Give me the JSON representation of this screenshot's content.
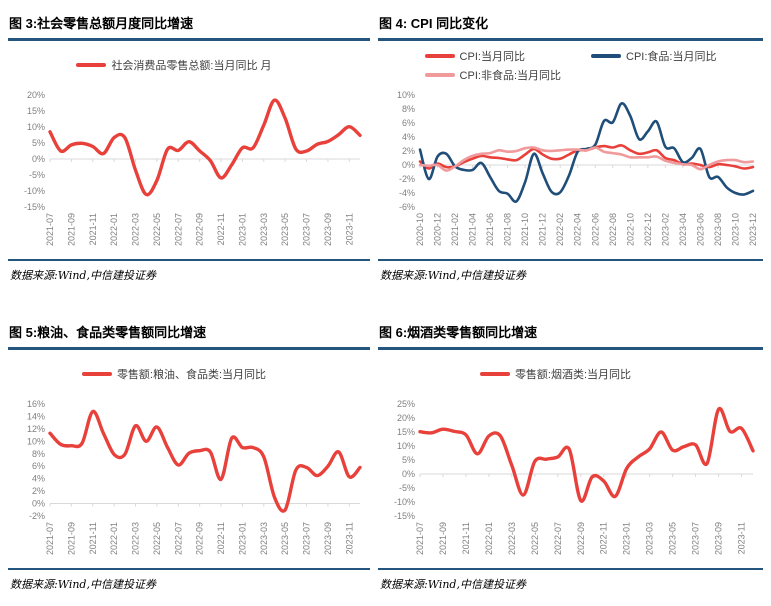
{
  "colors": {
    "red": "#E8403A",
    "dark_blue": "#1F4E79",
    "pink": "#F09A9C",
    "rule_blue": "#24557E",
    "zero_line": "#D9D9D9",
    "axis_label": "#808080",
    "legend_text": "#404040"
  },
  "source_note": "数据来源:Wind,中信建投证券",
  "chart_data": [
    {
      "type": "line",
      "title": "图 3:社会零售总额月度同比增速",
      "ylabel": "",
      "xlabel": "",
      "unit": "%",
      "ylim": [
        -15,
        20
      ],
      "ytick_step": 5,
      "x_tick_every": 2,
      "grid": "zero-line-only",
      "legend_position": "top-center",
      "stroke_width": 3.4,
      "x": [
        "2021-07",
        "2021-08",
        "2021-09",
        "2021-10",
        "2021-11",
        "2021-12",
        "2022-01",
        "2022-02",
        "2022-03",
        "2022-04",
        "2022-05",
        "2022-06",
        "2022-07",
        "2022-08",
        "2022-09",
        "2022-10",
        "2022-11",
        "2022-12",
        "2023-01",
        "2023-02",
        "2023-03",
        "2023-04",
        "2023-05",
        "2023-06",
        "2023-07",
        "2023-08",
        "2023-09",
        "2023-10",
        "2023-11",
        "2023-12"
      ],
      "series": [
        {
          "name": "社会消费品零售总额:当月同比 月",
          "color": "#E8403A",
          "values": [
            8.5,
            2.5,
            4.4,
            4.9,
            3.9,
            1.7,
            6.7,
            6.7,
            -3.5,
            -11.1,
            -6.7,
            3.1,
            2.7,
            5.4,
            2.5,
            -0.5,
            -5.9,
            -1.8,
            3.5,
            3.5,
            10.6,
            18.4,
            12.7,
            3.1,
            2.5,
            4.6,
            5.5,
            7.6,
            10.1,
            7.4
          ]
        }
      ]
    },
    {
      "type": "line",
      "title": "图 4: CPI 同比变化",
      "ylabel": "",
      "xlabel": "",
      "unit": "%",
      "ylim": [
        -6,
        10
      ],
      "ytick_step": 2,
      "x_tick_every": 2,
      "grid": "zero-line-only",
      "legend_position": "top-center",
      "stroke_width": 2.6,
      "x": [
        "2020-10",
        "2020-11",
        "2020-12",
        "2021-01",
        "2021-02",
        "2021-03",
        "2021-04",
        "2021-05",
        "2021-06",
        "2021-07",
        "2021-08",
        "2021-09",
        "2021-10",
        "2021-11",
        "2021-12",
        "2022-01",
        "2022-02",
        "2022-03",
        "2022-04",
        "2022-05",
        "2022-06",
        "2022-07",
        "2022-08",
        "2022-09",
        "2022-10",
        "2022-11",
        "2022-12",
        "2023-01",
        "2023-02",
        "2023-03",
        "2023-04",
        "2023-05",
        "2023-06",
        "2023-07",
        "2023-08",
        "2023-09",
        "2023-10",
        "2023-11",
        "2023-12"
      ],
      "series": [
        {
          "name": "CPI:当月同比",
          "color": "#E8403A",
          "values": [
            0.5,
            -0.5,
            0.2,
            -0.3,
            -0.2,
            0.4,
            0.9,
            1.3,
            1.1,
            1.0,
            0.8,
            0.7,
            1.5,
            2.3,
            1.5,
            0.9,
            0.9,
            1.5,
            2.1,
            2.1,
            2.5,
            2.7,
            2.5,
            2.8,
            2.1,
            1.6,
            1.8,
            2.1,
            1.0,
            0.7,
            0.1,
            0.2,
            0.0,
            -0.3,
            0.1,
            0.0,
            -0.2,
            -0.5,
            -0.3
          ]
        },
        {
          "name": "CPI:食品:当月同比",
          "color": "#1F4E79",
          "values": [
            2.2,
            -2.0,
            1.2,
            1.6,
            -0.2,
            -0.7,
            -0.7,
            0.3,
            -1.7,
            -3.7,
            -4.1,
            -5.2,
            -2.4,
            1.6,
            -1.2,
            -3.8,
            -3.9,
            -1.5,
            1.9,
            2.3,
            2.9,
            6.3,
            6.1,
            8.8,
            7.0,
            3.7,
            4.8,
            6.2,
            2.6,
            2.4,
            0.4,
            1.0,
            2.3,
            -1.7,
            -1.7,
            -3.2,
            -4.0,
            -4.2,
            -3.7
          ]
        },
        {
          "name": "CPI:非食品:当月同比",
          "color": "#F09A9C",
          "values": [
            0.0,
            -0.1,
            0.0,
            -0.8,
            -0.2,
            0.7,
            1.3,
            1.6,
            1.7,
            2.1,
            1.9,
            2.0,
            2.4,
            2.5,
            2.1,
            2.0,
            2.1,
            2.2,
            2.2,
            2.1,
            2.5,
            1.9,
            1.7,
            1.5,
            1.1,
            1.1,
            1.1,
            1.2,
            0.6,
            0.3,
            0.1,
            0.0,
            -0.6,
            0.0,
            0.5,
            0.7,
            0.7,
            0.4,
            0.5
          ]
        }
      ]
    },
    {
      "type": "line",
      "title": "图 5:粮油、食品类零售额同比增速",
      "ylabel": "",
      "xlabel": "",
      "unit": "%",
      "ylim": [
        -2,
        16
      ],
      "ytick_step": 2,
      "x_tick_every": 2,
      "grid": "zero-line-only",
      "legend_position": "top-center",
      "stroke_width": 3.4,
      "x": [
        "2021-07",
        "2021-08",
        "2021-09",
        "2021-10",
        "2021-11",
        "2021-12",
        "2022-01",
        "2022-02",
        "2022-03",
        "2022-04",
        "2022-05",
        "2022-06",
        "2022-07",
        "2022-08",
        "2022-09",
        "2022-10",
        "2022-11",
        "2022-12",
        "2023-01",
        "2023-02",
        "2023-03",
        "2023-04",
        "2023-05",
        "2023-06",
        "2023-07",
        "2023-08",
        "2023-09",
        "2023-10",
        "2023-11",
        "2023-12"
      ],
      "series": [
        {
          "name": "零售额:粮油、食品类:当月同比",
          "color": "#E8403A",
          "values": [
            11.3,
            9.5,
            9.3,
            9.7,
            14.8,
            11.3,
            7.9,
            7.9,
            12.5,
            10.0,
            12.3,
            9.0,
            6.2,
            8.1,
            8.5,
            8.3,
            3.9,
            10.5,
            9.0,
            9.0,
            7.5,
            1.0,
            -1.0,
            5.4,
            5.8,
            4.5,
            6.0,
            8.3,
            4.3,
            5.8
          ]
        }
      ]
    },
    {
      "type": "line",
      "title": "图 6:烟酒类零售额同比增速",
      "ylabel": "",
      "xlabel": "",
      "unit": "%",
      "ylim": [
        -15,
        25
      ],
      "ytick_step": 5,
      "x_tick_every": 2,
      "grid": "zero-line-only",
      "legend_position": "top-center",
      "stroke_width": 3.4,
      "x": [
        "2021-07",
        "2021-08",
        "2021-09",
        "2021-10",
        "2021-11",
        "2021-12",
        "2022-01",
        "2022-02",
        "2022-03",
        "2022-04",
        "2022-05",
        "2022-06",
        "2022-07",
        "2022-08",
        "2022-09",
        "2022-10",
        "2022-11",
        "2022-12",
        "2023-01",
        "2023-02",
        "2023-03",
        "2023-04",
        "2023-05",
        "2023-06",
        "2023-07",
        "2023-08",
        "2023-09",
        "2023-10",
        "2023-11",
        "2023-12"
      ],
      "series": [
        {
          "name": "零售额:烟酒类:当月同比",
          "color": "#E8403A",
          "values": [
            15.1,
            14.7,
            16.0,
            15.2,
            14.0,
            7.2,
            13.6,
            13.6,
            3.0,
            -7.5,
            4.5,
            5.3,
            6.1,
            8.8,
            -9.5,
            -1.0,
            -2.5,
            -8.0,
            2.0,
            6.1,
            9.0,
            15.0,
            8.5,
            9.8,
            10.4,
            3.8,
            23.1,
            15.2,
            16.3,
            8.3
          ]
        }
      ]
    }
  ]
}
